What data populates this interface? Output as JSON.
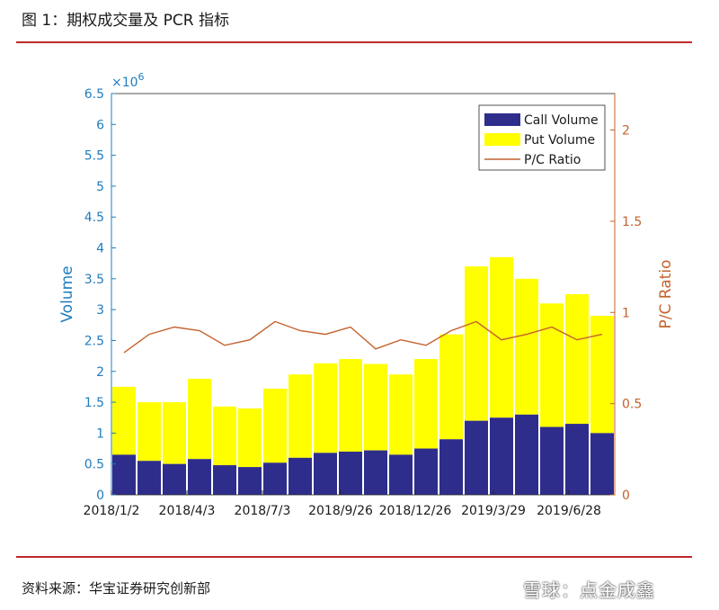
{
  "figure": {
    "title": "图 1：期权成交量及 PCR 指标",
    "source": "资料来源：华宝证券研究创新部",
    "watermark": "雪球：点金成鑫"
  },
  "chart_data": {
    "type": "bar",
    "stacked": true,
    "title": "",
    "xlabel": "",
    "ylabel": "Volume",
    "y_multiplier_label": "×10^6",
    "y2label": "P/C Ratio",
    "ylim": [
      0,
      6.5
    ],
    "y2lim": [
      0,
      2.2
    ],
    "yticks": [
      "0",
      "0.5",
      "1",
      "1.5",
      "2",
      "2.5",
      "3",
      "3.5",
      "4",
      "4.5",
      "5",
      "5.5",
      "6",
      "6.5"
    ],
    "y2ticks": [
      "0",
      "0.5",
      "1",
      "1.5",
      "2"
    ],
    "xtick_labels": [
      "2018/1/2",
      "2018/4/3",
      "2018/7/3",
      "2018/9/26",
      "2018/12/26",
      "2019/3/29",
      "2019/6/28"
    ],
    "legend": {
      "placement": "top-right"
    },
    "grid": false,
    "colors": {
      "call": "#2e2d8c",
      "put": "#ffff00",
      "ratio": "#c4622d",
      "left_axis": "#1f7dbf",
      "right_axis": "#c4622d"
    },
    "x": [
      "2018-01",
      "2018-02",
      "2018-03",
      "2018-04",
      "2018-05",
      "2018-06",
      "2018-07",
      "2018-08",
      "2018-09",
      "2018-10",
      "2018-11",
      "2018-12",
      "2019-01",
      "2019-02",
      "2019-03",
      "2019-04",
      "2019-05",
      "2019-06",
      "2019-07",
      "2019-08"
    ],
    "series": [
      {
        "name": "Call Volume",
        "axis": "left",
        "values": [
          0.65,
          0.55,
          0.5,
          0.58,
          0.48,
          0.45,
          0.52,
          0.6,
          0.68,
          0.7,
          0.72,
          0.65,
          0.75,
          0.9,
          1.2,
          1.25,
          1.3,
          1.1,
          1.15,
          1.0
        ]
      },
      {
        "name": "Put Volume",
        "axis": "left",
        "values": [
          1.1,
          0.95,
          1.0,
          1.3,
          0.95,
          0.95,
          1.2,
          1.35,
          1.45,
          1.5,
          1.4,
          1.3,
          1.45,
          1.7,
          2.5,
          2.6,
          2.2,
          2.0,
          2.1,
          1.9
        ]
      },
      {
        "name": "P/C Ratio",
        "axis": "right",
        "values": [
          0.78,
          0.88,
          0.92,
          0.9,
          0.82,
          0.85,
          0.95,
          0.9,
          0.88,
          0.92,
          0.8,
          0.85,
          0.82,
          0.9,
          0.95,
          0.85,
          0.88,
          0.92,
          0.85,
          0.88
        ]
      }
    ]
  }
}
